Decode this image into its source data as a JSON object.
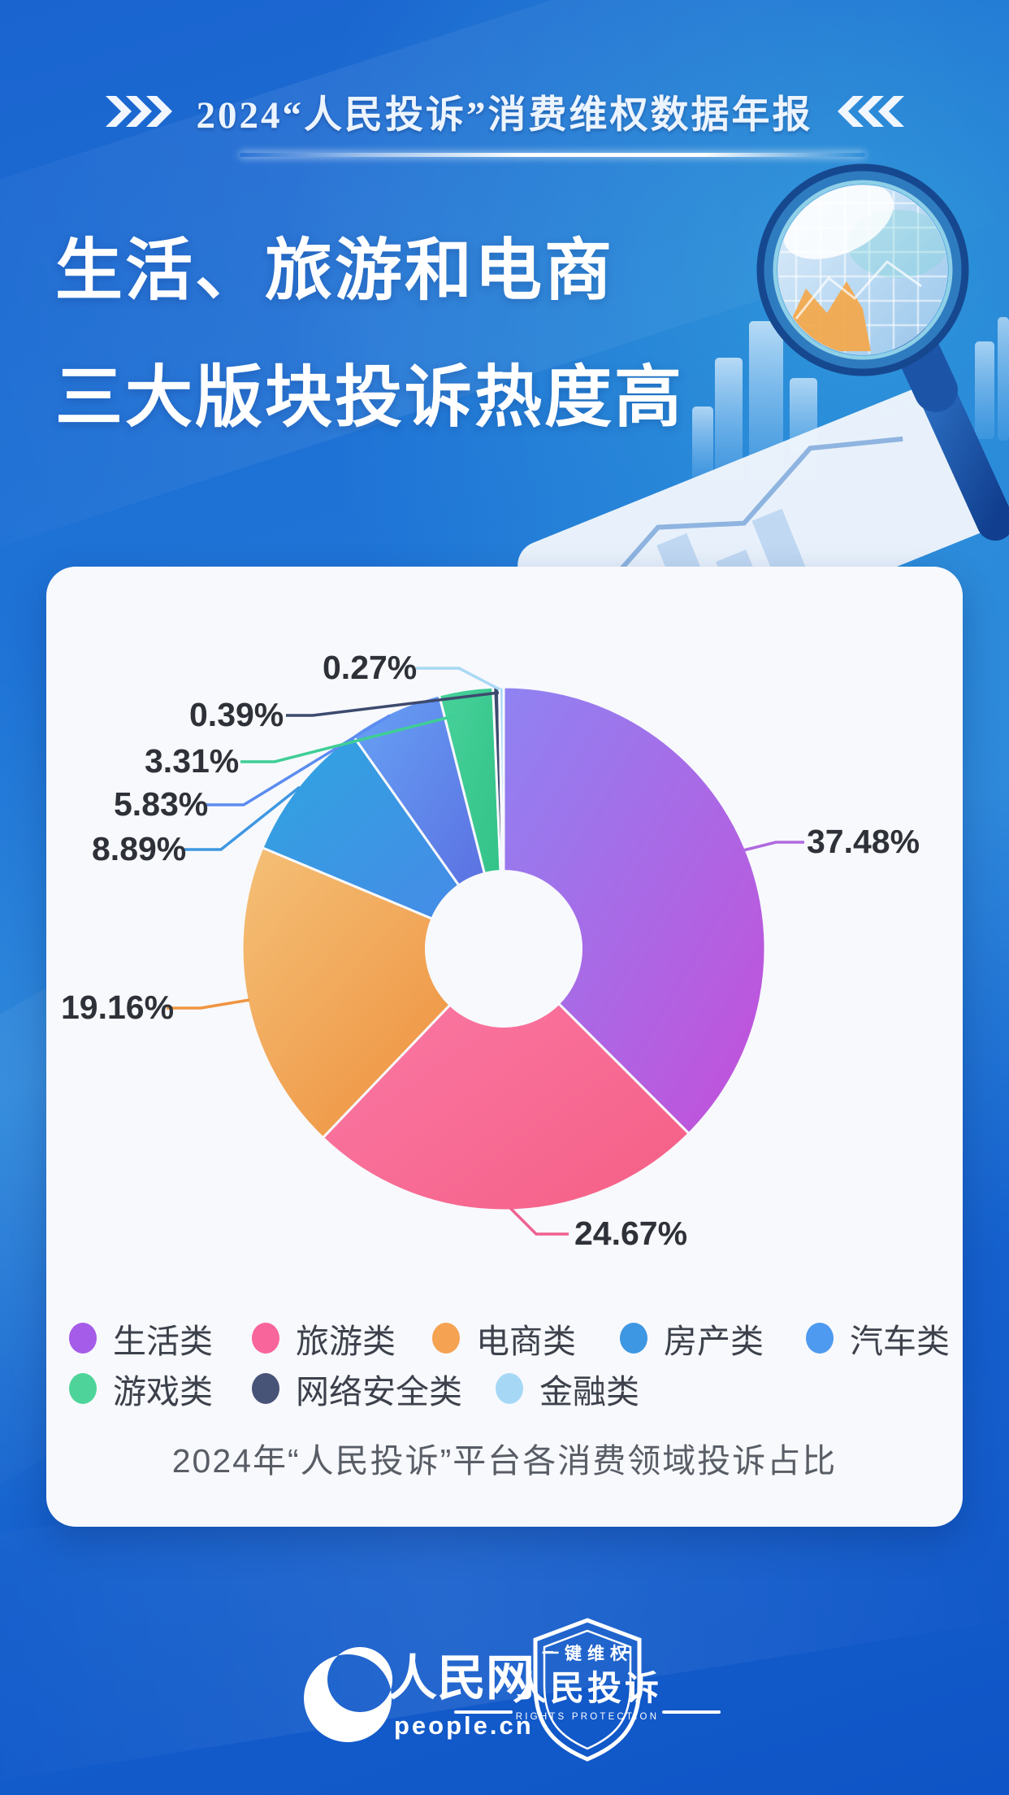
{
  "header": {
    "title": "2024“人民投诉”消费维权数据年报"
  },
  "hero": {
    "title_line1": "生活、旅游和电商",
    "title_line2": "三大版块投诉热度高"
  },
  "chart_data": {
    "type": "pie",
    "donut": true,
    "title": "2024年“人民投诉”平台各消费领域投诉占比",
    "unit": "%",
    "legend_position": "bottom",
    "series": [
      {
        "name": "生活类",
        "value": 37.48,
        "label": "37.48%",
        "color_from": "#8f83f2",
        "color_to": "#c44fd9",
        "legend_color": "#a55ce8",
        "line_color": "#b06ae0"
      },
      {
        "name": "旅游类",
        "value": 24.67,
        "label": "24.67%",
        "color_from": "#fa7ba8",
        "color_to": "#f55f85",
        "legend_color": "#f8659a",
        "line_color": "#f0608f"
      },
      {
        "name": "电商类",
        "value": 19.16,
        "label": "19.16%",
        "color_from": "#f4c077",
        "color_to": "#ee8a36",
        "legend_color": "#f5a352",
        "line_color": "#ef9540"
      },
      {
        "name": "房产类",
        "value": 8.89,
        "label": "8.89%",
        "color_from": "#2fa5e0",
        "color_to": "#4a86e8",
        "legend_color": "#3e97e2",
        "line_color": "#3e97e2"
      },
      {
        "name": "汽车类",
        "value": 5.83,
        "label": "5.83%",
        "color_from": "#66a2f5",
        "color_to": "#5966dd",
        "legend_color": "#4d9af0",
        "line_color": "#5b8cf0"
      },
      {
        "name": "游戏类",
        "value": 3.31,
        "label": "3.31%",
        "color_from": "#47d29a",
        "color_to": "#2fbf85",
        "legend_color": "#4ed49a",
        "line_color": "#3fce96"
      },
      {
        "name": "网络安全类",
        "value": 0.39,
        "label": "0.39%",
        "color_from": "#3d4a6e",
        "color_to": "#3d4a6e",
        "legend_color": "#475377",
        "line_color": "#3d4a6e"
      },
      {
        "name": "金融类",
        "value": 0.27,
        "label": "0.27%",
        "color_from": "#a6d8f6",
        "color_to": "#a6d8f6",
        "legend_color": "#a6d8f6",
        "line_color": "#a8d8f5"
      }
    ]
  },
  "footer": {
    "people_logo_text": "人民网",
    "people_domain": "people.cn",
    "badge_top": "一键维权",
    "badge_main": "人民投诉",
    "badge_sub": "RIGHTS PROTECTION"
  },
  "colors": {
    "background_top": "#1a64cf",
    "background_bottom": "#0f54c6",
    "card_background": "#f8f9fd",
    "label_text": "#2e3238"
  }
}
